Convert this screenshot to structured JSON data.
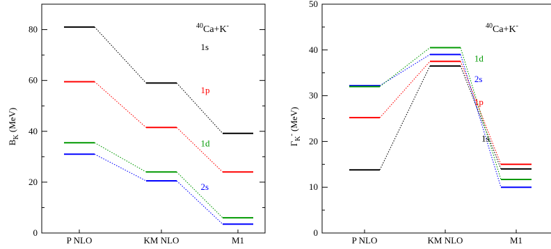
{
  "chart_data": [
    {
      "type": "level-diagram",
      "annotation_mass": "40",
      "annotation_rest": "Ca+K",
      "annotation_sup": "-",
      "ylabel_main": "B",
      "ylabel_sub": "K",
      "ylabel_unit": " (MeV)",
      "categories": [
        "P NLO",
        "KM NLO",
        "M1"
      ],
      "ylim": [
        0,
        90
      ],
      "yticks": [
        0,
        20,
        40,
        60,
        80
      ],
      "series": [
        {
          "name": "1s",
          "color": "#000000",
          "values": [
            81,
            59,
            39.2
          ],
          "label_pos": [
            1.55,
            72
          ]
        },
        {
          "name": "1p",
          "color": "#ff0000",
          "values": [
            59.5,
            41.5,
            24
          ],
          "label_pos": [
            1.55,
            55
          ]
        },
        {
          "name": "1d",
          "color": "#009900",
          "values": [
            35.5,
            24,
            6
          ],
          "label_pos": [
            1.55,
            34
          ]
        },
        {
          "name": "2s",
          "color": "#0000ff",
          "values": [
            31,
            20.5,
            3.5
          ],
          "label_pos": [
            1.55,
            17
          ]
        }
      ]
    },
    {
      "type": "level-diagram",
      "annotation_mass": "40",
      "annotation_rest": "Ca+K",
      "annotation_sup": "-",
      "ylabel_main": "Γ",
      "ylabel_sub": "K",
      "ylabel_sup": "-",
      "ylabel_unit": "  (MeV)",
      "categories": [
        "P NLO",
        "KM NLO",
        "M1"
      ],
      "ylim": [
        0,
        50
      ],
      "yticks": [
        0,
        10,
        20,
        30,
        40,
        50
      ],
      "series": [
        {
          "name": "1s",
          "color": "#000000",
          "values": [
            13.8,
            36.5,
            14
          ],
          "label_pos": [
            1.55,
            20
          ]
        },
        {
          "name": "1p",
          "color": "#ff0000",
          "values": [
            25.2,
            37.5,
            15
          ],
          "label_pos": [
            1.45,
            28
          ]
        },
        {
          "name": "2s",
          "color": "#0000ff",
          "values": [
            32.2,
            39,
            10
          ],
          "label_pos": [
            1.45,
            33
          ]
        },
        {
          "name": "1d",
          "color": "#009900",
          "values": [
            32,
            40.5,
            11.7
          ],
          "label_pos": [
            1.45,
            37.5
          ]
        }
      ]
    }
  ]
}
